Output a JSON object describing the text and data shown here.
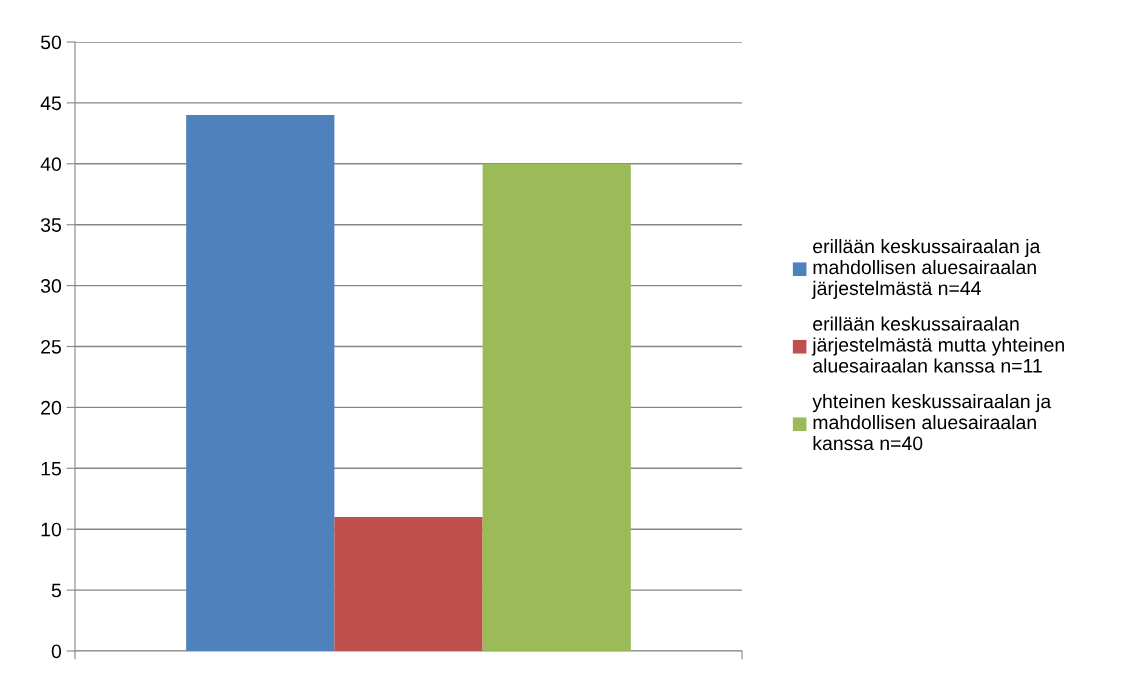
{
  "chart_data": {
    "type": "bar",
    "categories": [
      null
    ],
    "series": [
      {
        "name": "erillään keskussairaalan ja\nmahdollisen aluesairaalan\njärjestelmästä n=44",
        "color": "#4f81bd",
        "values": [
          44
        ]
      },
      {
        "name": "erillään keskussairaalan\njärjestelmästä mutta yhteinen\naluesairaalan kanssa n=11",
        "color": "#c0504d",
        "values": [
          11
        ]
      },
      {
        "name": "yhteinen keskussairaalan ja\nmahdollisen aluesairaalan\nkanssa n=40",
        "color": "#9bbb59",
        "values": [
          40
        ]
      }
    ],
    "ylim": [
      0,
      50
    ],
    "yticks": [
      0,
      5,
      10,
      15,
      20,
      25,
      30,
      35,
      40,
      45,
      50
    ],
    "grid": "y",
    "legend": "right"
  }
}
